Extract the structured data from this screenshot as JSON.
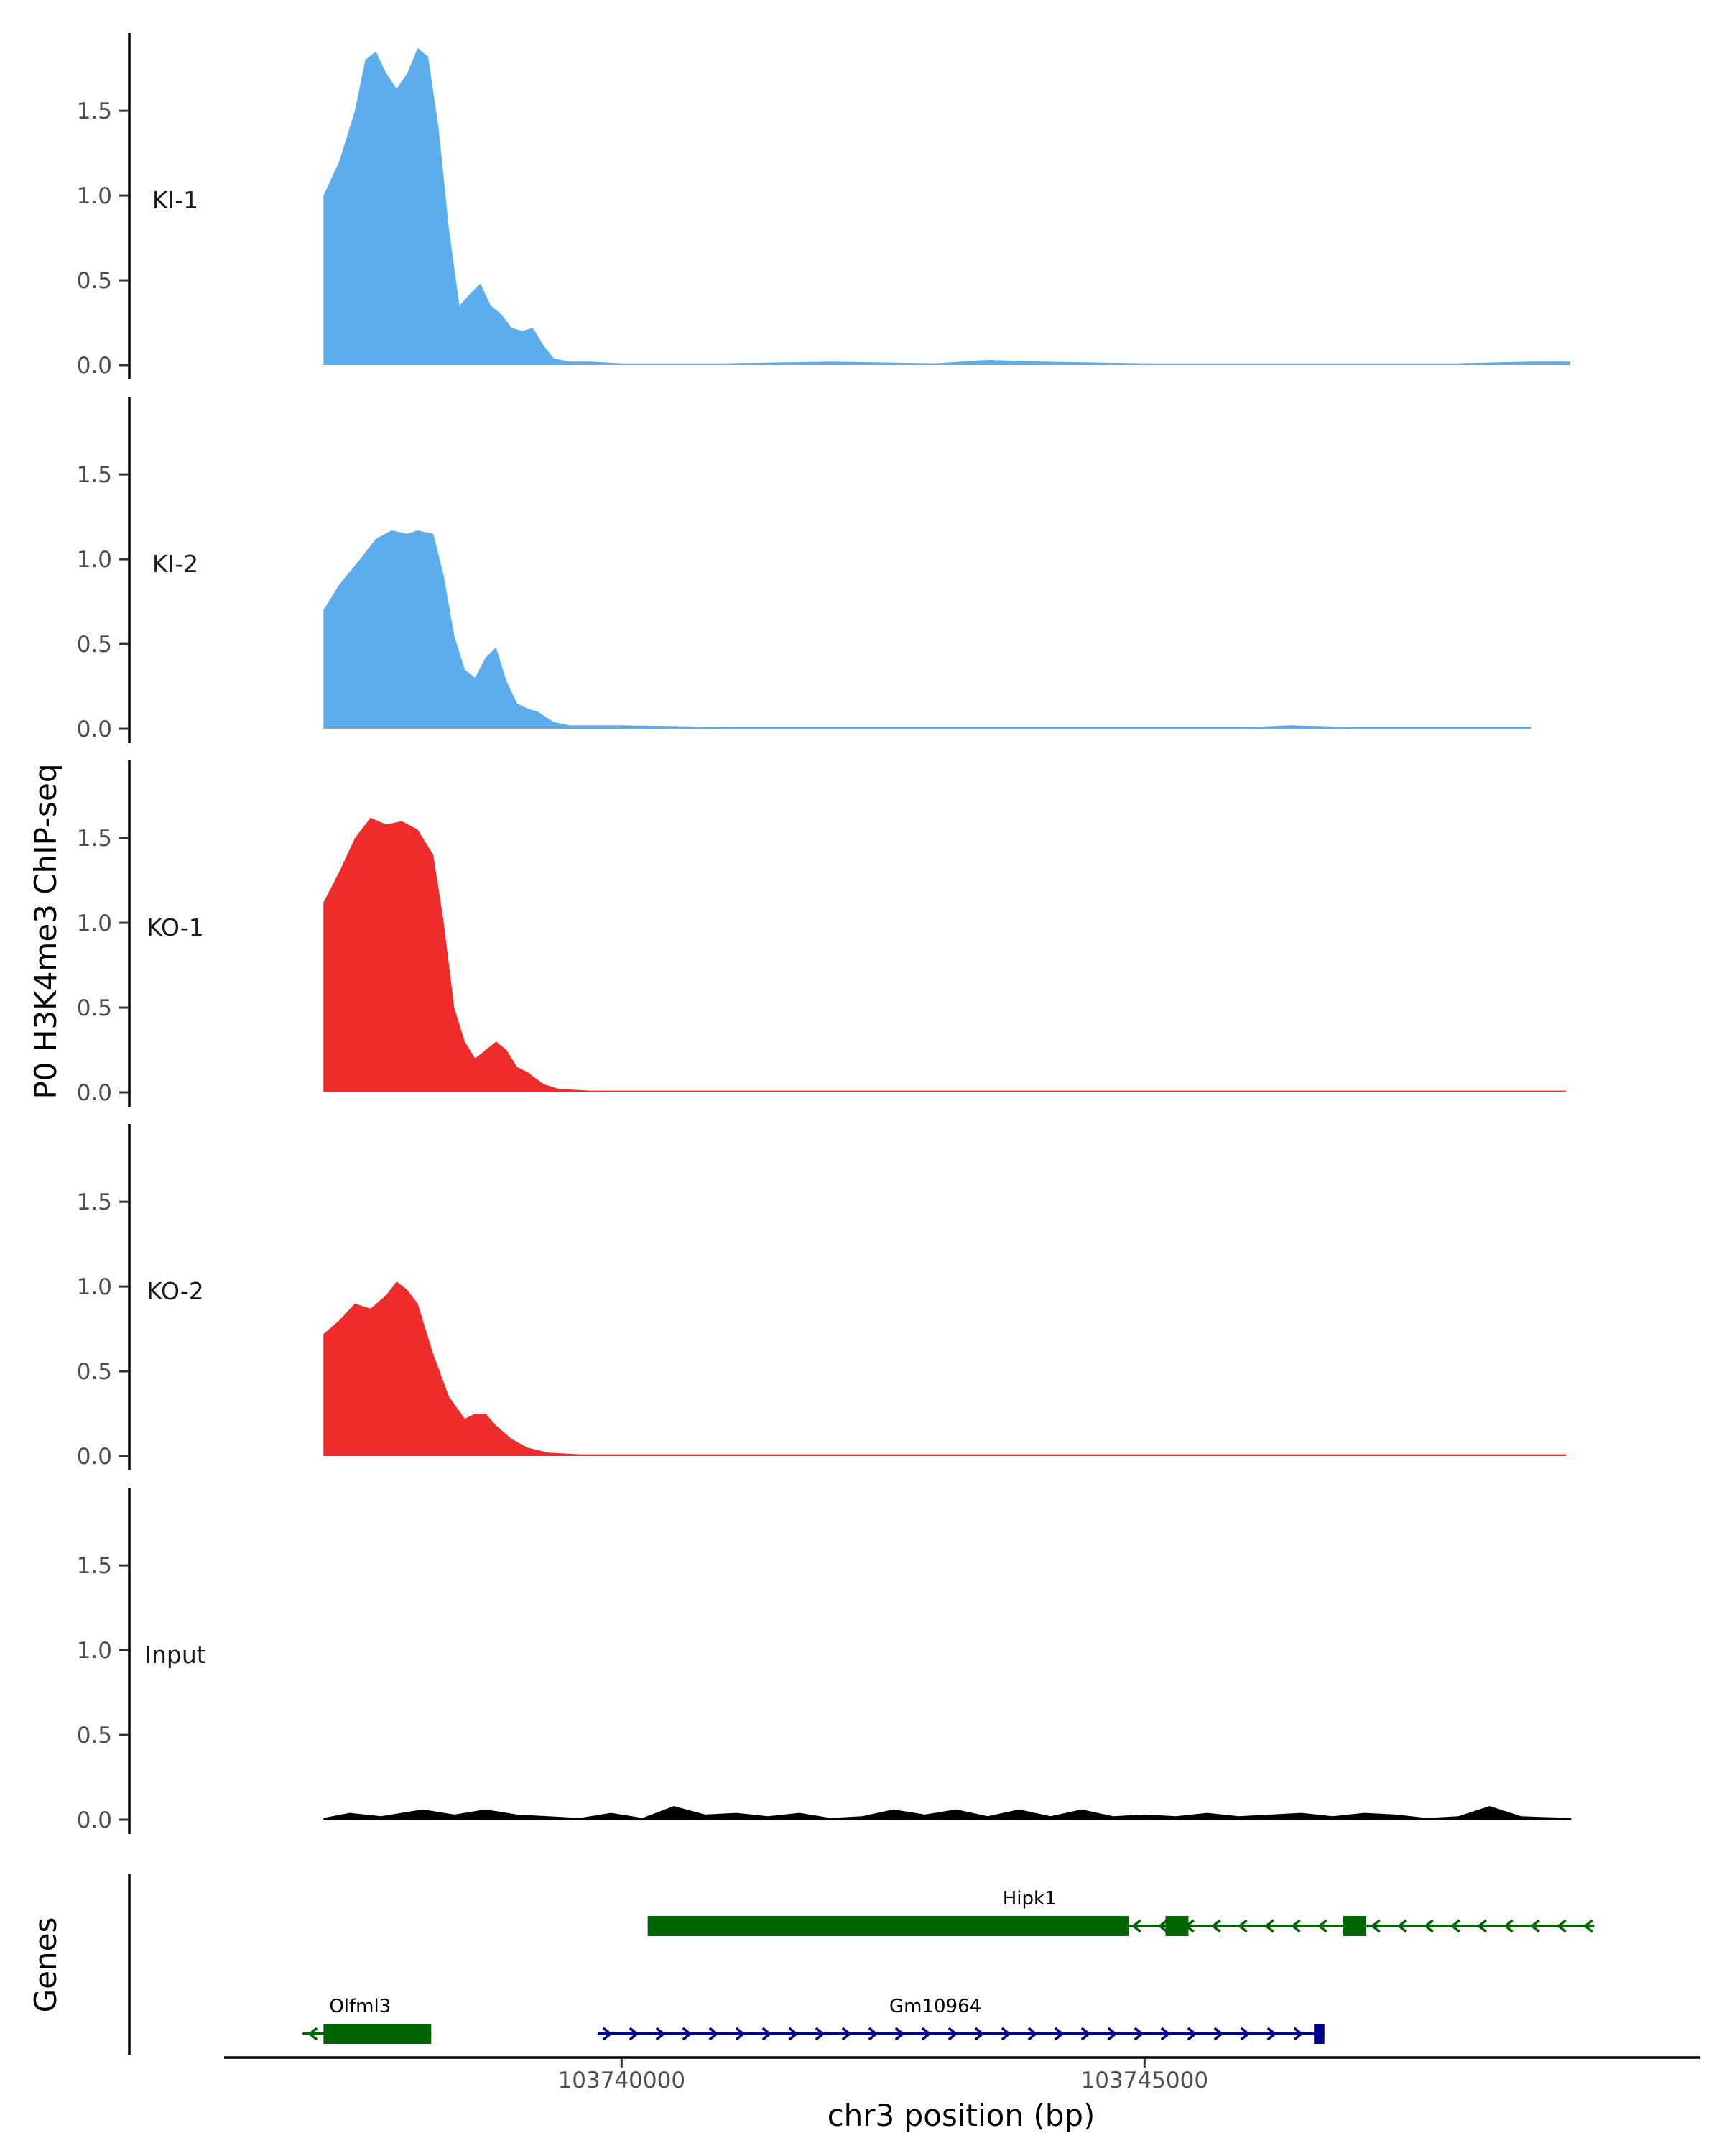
{
  "chart_data": {
    "type": "area",
    "title": "",
    "ylabel": "P0 H3K4me3 ChIP-seq",
    "xlabel": "chr3 position (bp)",
    "xlim": [
      103736200,
      103750300
    ],
    "ylim": [
      0,
      1.95
    ],
    "yticks": [
      0.0,
      0.5,
      1.0,
      1.5
    ],
    "ytick_labels": [
      "0.0",
      "0.5",
      "1.0",
      "1.5"
    ],
    "xticks": [
      103740000,
      103745000
    ],
    "xtick_labels": [
      "103740000",
      "103745000"
    ],
    "genes_track_label": "Genes",
    "tracks": [
      {
        "name": "KI-1",
        "color": "#5DADEC",
        "start": 103737150,
        "end": 103749070,
        "points": [
          [
            103737150,
            1.0
          ],
          [
            103737300,
            1.2
          ],
          [
            103737450,
            1.5
          ],
          [
            103737550,
            1.8
          ],
          [
            103737650,
            1.85
          ],
          [
            103737750,
            1.72
          ],
          [
            103737850,
            1.63
          ],
          [
            103737950,
            1.72
          ],
          [
            103738050,
            1.87
          ],
          [
            103738150,
            1.82
          ],
          [
            103738250,
            1.4
          ],
          [
            103738350,
            0.8
          ],
          [
            103738450,
            0.35
          ],
          [
            103738550,
            0.42
          ],
          [
            103738650,
            0.48
          ],
          [
            103738750,
            0.35
          ],
          [
            103738850,
            0.3
          ],
          [
            103738950,
            0.22
          ],
          [
            103739050,
            0.2
          ],
          [
            103739150,
            0.22
          ],
          [
            103739250,
            0.12
          ],
          [
            103739350,
            0.04
          ],
          [
            103739500,
            0.02
          ],
          [
            103739700,
            0.02
          ],
          [
            103740000,
            0.01
          ],
          [
            103740300,
            0.01
          ],
          [
            103741000,
            0.01
          ],
          [
            103742000,
            0.02
          ],
          [
            103743000,
            0.01
          ],
          [
            103743500,
            0.03
          ],
          [
            103744000,
            0.02
          ],
          [
            103745000,
            0.01
          ],
          [
            103746000,
            0.01
          ],
          [
            103747000,
            0.01
          ],
          [
            103748000,
            0.01
          ],
          [
            103748700,
            0.02
          ],
          [
            103749070,
            0.02
          ]
        ]
      },
      {
        "name": "KI-2",
        "color": "#5DADEC",
        "start": 103737150,
        "end": 103748700,
        "points": [
          [
            103737150,
            0.7
          ],
          [
            103737300,
            0.85
          ],
          [
            103737500,
            1.0
          ],
          [
            103737650,
            1.12
          ],
          [
            103737800,
            1.17
          ],
          [
            103737950,
            1.15
          ],
          [
            103738050,
            1.17
          ],
          [
            103738200,
            1.15
          ],
          [
            103738300,
            0.9
          ],
          [
            103738400,
            0.55
          ],
          [
            103738500,
            0.35
          ],
          [
            103738600,
            0.3
          ],
          [
            103738700,
            0.42
          ],
          [
            103738800,
            0.48
          ],
          [
            103738900,
            0.28
          ],
          [
            103739000,
            0.15
          ],
          [
            103739100,
            0.12
          ],
          [
            103739200,
            0.1
          ],
          [
            103739350,
            0.04
          ],
          [
            103739500,
            0.02
          ],
          [
            103740000,
            0.02
          ],
          [
            103741000,
            0.01
          ],
          [
            103742000,
            0.01
          ],
          [
            103743000,
            0.01
          ],
          [
            103744000,
            0.01
          ],
          [
            103745000,
            0.01
          ],
          [
            103746000,
            0.01
          ],
          [
            103746400,
            0.02
          ],
          [
            103747000,
            0.01
          ],
          [
            103748000,
            0.01
          ],
          [
            103748700,
            0.01
          ]
        ]
      },
      {
        "name": "KO-1",
        "color": "#EE2C2C",
        "start": 103737150,
        "end": 103749030,
        "points": [
          [
            103737150,
            1.12
          ],
          [
            103737300,
            1.3
          ],
          [
            103737450,
            1.5
          ],
          [
            103737600,
            1.62
          ],
          [
            103737750,
            1.58
          ],
          [
            103737900,
            1.6
          ],
          [
            103738050,
            1.55
          ],
          [
            103738200,
            1.4
          ],
          [
            103738300,
            1.0
          ],
          [
            103738400,
            0.5
          ],
          [
            103738500,
            0.3
          ],
          [
            103738600,
            0.2
          ],
          [
            103738700,
            0.25
          ],
          [
            103738800,
            0.3
          ],
          [
            103738900,
            0.25
          ],
          [
            103739000,
            0.15
          ],
          [
            103739100,
            0.12
          ],
          [
            103739250,
            0.05
          ],
          [
            103739400,
            0.02
          ],
          [
            103739700,
            0.01
          ],
          [
            103740000,
            0.01
          ],
          [
            103741000,
            0.01
          ],
          [
            103742000,
            0.01
          ],
          [
            103743000,
            0.01
          ],
          [
            103744000,
            0.01
          ],
          [
            103745000,
            0.01
          ],
          [
            103746000,
            0.01
          ],
          [
            103747000,
            0.01
          ],
          [
            103748000,
            0.01
          ],
          [
            103749030,
            0.01
          ]
        ]
      },
      {
        "name": "KO-2",
        "color": "#EE2C2C",
        "start": 103737150,
        "end": 103749030,
        "points": [
          [
            103737150,
            0.72
          ],
          [
            103737300,
            0.8
          ],
          [
            103737450,
            0.9
          ],
          [
            103737600,
            0.87
          ],
          [
            103737750,
            0.95
          ],
          [
            103737850,
            1.03
          ],
          [
            103737950,
            0.98
          ],
          [
            103738050,
            0.9
          ],
          [
            103738200,
            0.6
          ],
          [
            103738350,
            0.35
          ],
          [
            103738500,
            0.22
          ],
          [
            103738600,
            0.25
          ],
          [
            103738700,
            0.25
          ],
          [
            103738800,
            0.18
          ],
          [
            103738950,
            0.1
          ],
          [
            103739100,
            0.05
          ],
          [
            103739300,
            0.02
          ],
          [
            103739600,
            0.01
          ],
          [
            103740000,
            0.01
          ],
          [
            103741000,
            0.01
          ],
          [
            103742000,
            0.01
          ],
          [
            103743000,
            0.01
          ],
          [
            103744000,
            0.01
          ],
          [
            103745000,
            0.01
          ],
          [
            103746000,
            0.01
          ],
          [
            103747000,
            0.01
          ],
          [
            103748000,
            0.01
          ],
          [
            103749030,
            0.01
          ]
        ]
      },
      {
        "name": "Input",
        "color": "#000000",
        "start": 103737150,
        "end": 103749080,
        "points": [
          [
            103737150,
            0.01
          ],
          [
            103737400,
            0.04
          ],
          [
            103737700,
            0.02
          ],
          [
            103738100,
            0.06
          ],
          [
            103738400,
            0.03
          ],
          [
            103738700,
            0.06
          ],
          [
            103739000,
            0.03
          ],
          [
            103739300,
            0.02
          ],
          [
            103739600,
            0.01
          ],
          [
            103739900,
            0.04
          ],
          [
            103740200,
            0.01
          ],
          [
            103740500,
            0.08
          ],
          [
            103740800,
            0.03
          ],
          [
            103741100,
            0.04
          ],
          [
            103741400,
            0.02
          ],
          [
            103741700,
            0.04
          ],
          [
            103742000,
            0.01
          ],
          [
            103742300,
            0.02
          ],
          [
            103742600,
            0.06
          ],
          [
            103742900,
            0.03
          ],
          [
            103743200,
            0.06
          ],
          [
            103743500,
            0.02
          ],
          [
            103743800,
            0.06
          ],
          [
            103744100,
            0.02
          ],
          [
            103744400,
            0.06
          ],
          [
            103744700,
            0.02
          ],
          [
            103745000,
            0.03
          ],
          [
            103745300,
            0.02
          ],
          [
            103745600,
            0.04
          ],
          [
            103745900,
            0.02
          ],
          [
            103746200,
            0.03
          ],
          [
            103746500,
            0.04
          ],
          [
            103746800,
            0.02
          ],
          [
            103747100,
            0.04
          ],
          [
            103747400,
            0.03
          ],
          [
            103747700,
            0.01
          ],
          [
            103748000,
            0.02
          ],
          [
            103748300,
            0.08
          ],
          [
            103748600,
            0.02
          ],
          [
            103749080,
            0.01
          ]
        ]
      }
    ],
    "genes": [
      {
        "name": "Hipk1",
        "strand": "-",
        "row": 1,
        "color": "#006400",
        "start": 103740250,
        "end": 103749300,
        "label_pos": 103743900,
        "exons": [
          [
            103740250,
            103744850
          ],
          [
            103745200,
            103745420
          ],
          [
            103746900,
            103747120
          ]
        ]
      },
      {
        "name": "Olfml3",
        "strand": "-",
        "row": 2,
        "color": "#006400",
        "start": 103736950,
        "end": 103738180,
        "label_pos": 103737500,
        "exons": [
          [
            103737150,
            103738180
          ]
        ]
      },
      {
        "name": "Gm10964",
        "strand": "+",
        "row": 2,
        "color": "#00008B",
        "start": 103739770,
        "end": 103746720,
        "label_pos": 103743000,
        "exons": [
          [
            103746620,
            103746720
          ]
        ]
      }
    ]
  }
}
